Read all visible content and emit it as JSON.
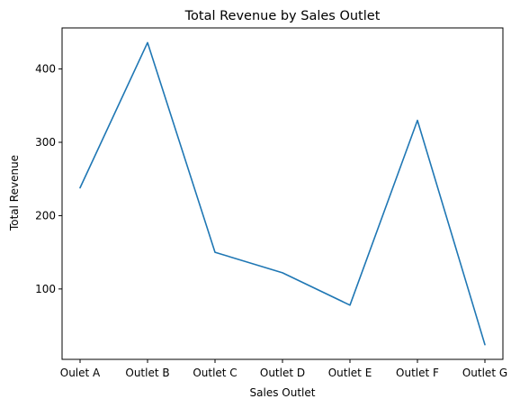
{
  "chart_data": {
    "type": "line",
    "title": "Total Revenue by Sales Outlet",
    "xlabel": "Sales Outlet",
    "ylabel": "Total Revenue",
    "categories": [
      "Oulet A",
      "Outlet B",
      "Outlet C",
      "Outlet D",
      "Outlet E",
      "Outlet F",
      "Outlet G"
    ],
    "series": [
      {
        "values": [
          238,
          436,
          150,
          122,
          78,
          330,
          24
        ],
        "color": "#1f77b4"
      }
    ],
    "ylim": [
      4,
      456
    ],
    "yticks": [
      100,
      200,
      300,
      400
    ],
    "grid": false,
    "legend": "none"
  }
}
